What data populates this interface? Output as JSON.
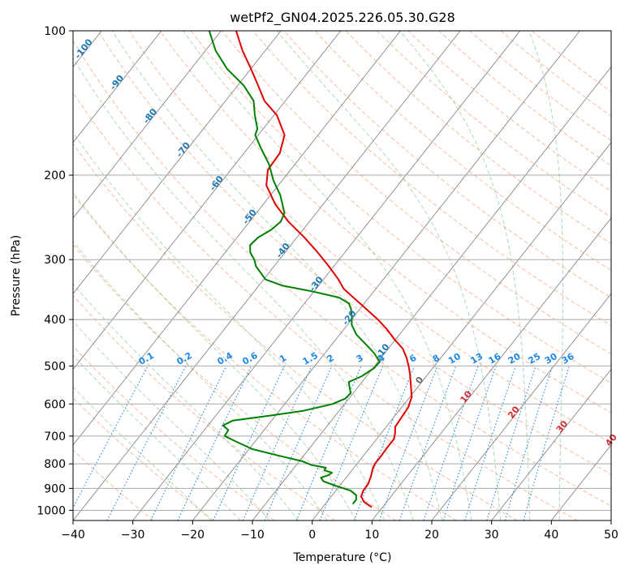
{
  "chart_data": {
    "type": "line",
    "subtype": "skew-T log-p diagram",
    "title": "wetPf2_GN04.2025.226.05.30.G28",
    "xlabel": "Temperature (°C)",
    "ylabel": "Pressure (hPa)",
    "xlim": [
      -40,
      50
    ],
    "ylim": [
      1050,
      100
    ],
    "yscale": "log",
    "grid": true,
    "x_ticks": [
      -40,
      -30,
      -20,
      -10,
      0,
      10,
      20,
      30,
      40,
      50
    ],
    "y_ticks": [
      100,
      200,
      300,
      400,
      500,
      600,
      700,
      800,
      900,
      1000
    ],
    "series": [
      {
        "role": "temperature",
        "color": "#e00000",
        "points": [
          {
            "p": 985,
            "t": 8.2
          },
          {
            "p": 960,
            "t": 6.2
          },
          {
            "p": 935,
            "t": 5.0
          },
          {
            "p": 910,
            "t": 4.6
          },
          {
            "p": 880,
            "t": 4.5
          },
          {
            "p": 850,
            "t": 4.0
          },
          {
            "p": 820,
            "t": 3.3
          },
          {
            "p": 800,
            "t": 3.0
          },
          {
            "p": 770,
            "t": 3.0
          },
          {
            "p": 740,
            "t": 2.9
          },
          {
            "p": 710,
            "t": 2.9
          },
          {
            "p": 690,
            "t": 2.3
          },
          {
            "p": 670,
            "t": 1.5
          },
          {
            "p": 640,
            "t": 1.3
          },
          {
            "p": 610,
            "t": 1.1
          },
          {
            "p": 580,
            "t": 0.3
          },
          {
            "p": 550,
            "t": -1.3
          },
          {
            "p": 520,
            "t": -3.0
          },
          {
            "p": 500,
            "t": -4.3
          },
          {
            "p": 480,
            "t": -5.8
          },
          {
            "p": 460,
            "t": -7.6
          },
          {
            "p": 440,
            "t": -10.2
          },
          {
            "p": 420,
            "t": -12.7
          },
          {
            "p": 400,
            "t": -15.6
          },
          {
            "p": 380,
            "t": -19.0
          },
          {
            "p": 360,
            "t": -22.6
          },
          {
            "p": 345,
            "t": -25.4
          },
          {
            "p": 330,
            "t": -27.5
          },
          {
            "p": 310,
            "t": -30.8
          },
          {
            "p": 290,
            "t": -34.5
          },
          {
            "p": 270,
            "t": -38.7
          },
          {
            "p": 250,
            "t": -43.5
          },
          {
            "p": 230,
            "t": -48.0
          },
          {
            "p": 210,
            "t": -52.0
          },
          {
            "p": 195,
            "t": -53.8
          },
          {
            "p": 180,
            "t": -54.0
          },
          {
            "p": 165,
            "t": -55.6
          },
          {
            "p": 150,
            "t": -59.5
          },
          {
            "p": 140,
            "t": -63.5
          },
          {
            "p": 130,
            "t": -66.6
          },
          {
            "p": 120,
            "t": -70.0
          },
          {
            "p": 110,
            "t": -73.8
          },
          {
            "p": 100,
            "t": -77.5
          }
        ]
      },
      {
        "role": "dewpoint",
        "color": "#008000",
        "points": [
          {
            "p": 970,
            "t": 4.6
          },
          {
            "p": 950,
            "t": 4.6
          },
          {
            "p": 930,
            "t": 4.0
          },
          {
            "p": 910,
            "t": 2.5
          },
          {
            "p": 890,
            "t": -0.5
          },
          {
            "p": 870,
            "t": -3.3
          },
          {
            "p": 855,
            "t": -4.2
          },
          {
            "p": 845,
            "t": -3.3
          },
          {
            "p": 835,
            "t": -3.0
          },
          {
            "p": 825,
            "t": -4.6
          },
          {
            "p": 815,
            "t": -4.7
          },
          {
            "p": 805,
            "t": -7.4
          },
          {
            "p": 790,
            "t": -9.5
          },
          {
            "p": 770,
            "t": -14.0
          },
          {
            "p": 745,
            "t": -19.5
          },
          {
            "p": 720,
            "t": -23.0
          },
          {
            "p": 700,
            "t": -25.8
          },
          {
            "p": 680,
            "t": -26.0
          },
          {
            "p": 665,
            "t": -27.5
          },
          {
            "p": 650,
            "t": -26.5
          },
          {
            "p": 635,
            "t": -21.0
          },
          {
            "p": 620,
            "t": -16.0
          },
          {
            "p": 600,
            "t": -12.0
          },
          {
            "p": 585,
            "t": -10.6
          },
          {
            "p": 570,
            "t": -10.4
          },
          {
            "p": 555,
            "t": -11.3
          },
          {
            "p": 540,
            "t": -12.2
          },
          {
            "p": 525,
            "t": -10.8
          },
          {
            "p": 505,
            "t": -9.8
          },
          {
            "p": 490,
            "t": -9.7
          },
          {
            "p": 470,
            "t": -11.8
          },
          {
            "p": 450,
            "t": -14.4
          },
          {
            "p": 430,
            "t": -17.2
          },
          {
            "p": 410,
            "t": -19.3
          },
          {
            "p": 395,
            "t": -20.3
          },
          {
            "p": 380,
            "t": -21.5
          },
          {
            "p": 370,
            "t": -22.6
          },
          {
            "p": 360,
            "t": -25.0
          },
          {
            "p": 350,
            "t": -30.0
          },
          {
            "p": 340,
            "t": -36.0
          },
          {
            "p": 330,
            "t": -39.7
          },
          {
            "p": 320,
            "t": -41.3
          },
          {
            "p": 310,
            "t": -43.0
          },
          {
            "p": 300,
            "t": -44.2
          },
          {
            "p": 290,
            "t": -45.8
          },
          {
            "p": 280,
            "t": -46.8
          },
          {
            "p": 270,
            "t": -46.5
          },
          {
            "p": 260,
            "t": -45.3
          },
          {
            "p": 250,
            "t": -44.8
          },
          {
            "p": 240,
            "t": -45.3
          },
          {
            "p": 230,
            "t": -46.8
          },
          {
            "p": 220,
            "t": -48.4
          },
          {
            "p": 205,
            "t": -51.5
          },
          {
            "p": 190,
            "t": -54.3
          },
          {
            "p": 175,
            "t": -58.0
          },
          {
            "p": 165,
            "t": -60.5
          },
          {
            "p": 160,
            "t": -61.0
          },
          {
            "p": 150,
            "t": -63.2
          },
          {
            "p": 140,
            "t": -65.3
          },
          {
            "p": 130,
            "t": -69.0
          },
          {
            "p": 120,
            "t": -74.0
          },
          {
            "p": 110,
            "t": -78.3
          },
          {
            "p": 100,
            "t": -82.0
          }
        ]
      }
    ],
    "annotations": {
      "isotherm_labels": [
        "-100",
        "-90",
        "-80",
        "-70",
        "-60",
        "-50",
        "-40",
        "-30",
        "-20",
        "-10",
        "0",
        "10",
        "20",
        "30",
        "40"
      ],
      "mixing_ratio_labels": [
        "0.1",
        "0.2",
        "0.4",
        "0.6",
        "1",
        "1.5",
        "2",
        "3",
        "4",
        "6",
        "8",
        "10",
        "13",
        "16",
        "20",
        "25",
        "30",
        "36"
      ]
    }
  }
}
